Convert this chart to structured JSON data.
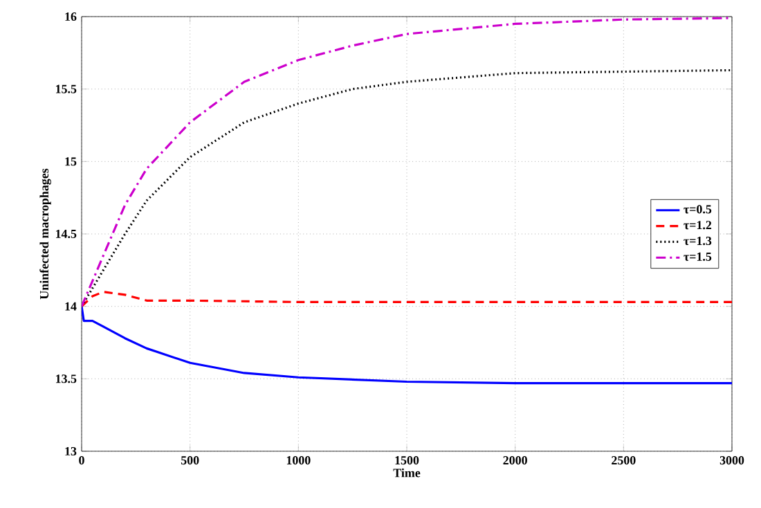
{
  "chart_data": {
    "type": "line",
    "xlabel": "Time",
    "ylabel": "Uninfected macrophages",
    "xlim": [
      0,
      3000
    ],
    "ylim": [
      13,
      16
    ],
    "xticks": [
      0,
      500,
      1000,
      1500,
      2000,
      2500,
      3000
    ],
    "yticks": [
      13,
      13.5,
      14,
      14.5,
      15,
      15.5,
      16
    ],
    "grid": true,
    "legend": "right",
    "series": [
      {
        "name": "τ=0.5",
        "color": "#0000ff",
        "line_style": "solid",
        "x": [
          0,
          10,
          50,
          100,
          200,
          300,
          500,
          750,
          1000,
          1500,
          2000,
          2500,
          3000
        ],
        "values": [
          14.0,
          13.9,
          13.9,
          13.86,
          13.78,
          13.71,
          13.61,
          13.54,
          13.51,
          13.48,
          13.47,
          13.47,
          13.47
        ]
      },
      {
        "name": "τ=1.2",
        "color": "#ff0000",
        "line_style": "dashed",
        "x": [
          0,
          50,
          100,
          200,
          300,
          500,
          1000,
          2000,
          3000
        ],
        "values": [
          14.0,
          14.07,
          14.1,
          14.08,
          14.04,
          14.04,
          14.03,
          14.03,
          14.03
        ]
      },
      {
        "name": "τ=1.3",
        "color": "#000000",
        "line_style": "dotted",
        "x": [
          0,
          100,
          200,
          300,
          500,
          750,
          1000,
          1250,
          1500,
          2000,
          2500,
          3000
        ],
        "values": [
          14.0,
          14.25,
          14.5,
          14.73,
          15.03,
          15.27,
          15.4,
          15.5,
          15.55,
          15.61,
          15.62,
          15.63
        ]
      },
      {
        "name": "τ=1.5",
        "color": "#cc00cc",
        "line_style": "dashdot",
        "x": [
          0,
          100,
          200,
          300,
          500,
          750,
          1000,
          1250,
          1500,
          2000,
          2500,
          3000
        ],
        "values": [
          14.0,
          14.35,
          14.7,
          14.95,
          15.27,
          15.55,
          15.7,
          15.8,
          15.88,
          15.95,
          15.98,
          15.99
        ]
      }
    ]
  }
}
